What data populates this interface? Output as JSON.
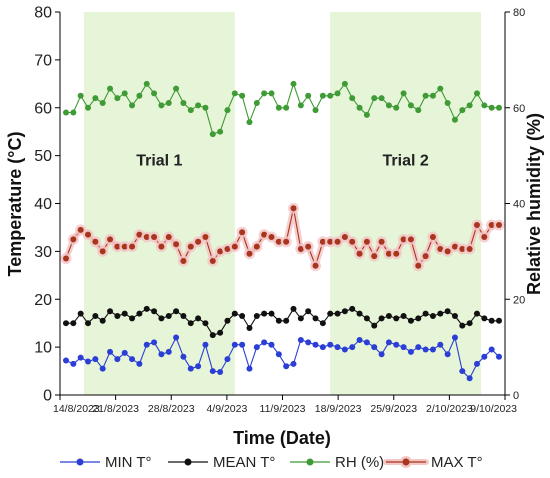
{
  "chart_data": {
    "type": "line",
    "xlabel": "Time (Date)",
    "ylabel": "Temperature (°C)",
    "y2label": "Relative humidity (%)",
    "ylim": [
      0,
      80
    ],
    "y2lim": [
      0,
      80
    ],
    "yticks": [
      0,
      10,
      20,
      30,
      40,
      50,
      60,
      70,
      80
    ],
    "y2ticks": [
      0,
      20,
      40,
      60,
      80
    ],
    "x_start": "14/8/2023",
    "x_end": "9/10/2023",
    "xticks": [
      "14/8/2023",
      "21/8/2023",
      "28/8/2023",
      "4/9/2023",
      "11/9/2023",
      "18/9/2023",
      "25/9/2023",
      "2/10/2023",
      "9/10/2023"
    ],
    "grid": false,
    "legend_position": "bottom",
    "shaded_periods": [
      {
        "label": "Trial 1",
        "start": "17/8/2023",
        "end": "5/9/2023"
      },
      {
        "label": "Trial 2",
        "start": "17/9/2023",
        "end": "6/10/2023"
      }
    ],
    "series": [
      {
        "name": "MIN T°",
        "color": "#2b3fd6",
        "axis": "left",
        "values": [
          7.2,
          6.5,
          7.8,
          7.0,
          7.5,
          5.5,
          9.0,
          7.5,
          8.8,
          7.5,
          6.5,
          10.5,
          11.0,
          8.5,
          9.0,
          12.0,
          8.0,
          5.5,
          6.0,
          10.5,
          5.0,
          4.8,
          7.5,
          10.5,
          10.5,
          5.5,
          10.0,
          11.0,
          10.5,
          8.5,
          6.0,
          6.5,
          11.5,
          11.0,
          10.5,
          10.0,
          10.5,
          10.0,
          9.5,
          10.0,
          11.5,
          11.0,
          10.0,
          8.5,
          11.0,
          10.5,
          10.0,
          9.0,
          10.0,
          9.5,
          9.5,
          10.5,
          8.5,
          12.0,
          5.0,
          3.5,
          6.5,
          8.0,
          9.5,
          8.0
        ]
      },
      {
        "name": "MEAN T°",
        "color": "#111111",
        "axis": "left",
        "values": [
          15.0,
          15.0,
          17.0,
          15.0,
          16.5,
          15.5,
          17.5,
          16.5,
          17.0,
          16.0,
          17.0,
          18.0,
          17.5,
          16.0,
          16.5,
          17.5,
          16.5,
          15.0,
          16.0,
          15.0,
          12.5,
          13.0,
          15.5,
          17.0,
          16.5,
          14.0,
          16.5,
          17.0,
          17.0,
          15.5,
          15.5,
          18.0,
          16.0,
          17.5,
          16.0,
          15.0,
          17.0,
          17.0,
          17.5,
          18.0,
          17.0,
          16.0,
          14.5,
          16.0,
          16.5,
          16.0,
          16.5,
          15.5,
          16.0,
          17.0,
          16.5,
          17.0,
          17.5,
          16.5,
          14.5,
          15.0,
          17.0,
          16.0,
          15.5,
          15.5
        ]
      },
      {
        "name": "RH (%)",
        "color": "#3f9b35",
        "axis": "right",
        "values": [
          59.0,
          59.0,
          62.5,
          60.0,
          62.0,
          61.0,
          64.0,
          62.0,
          63.0,
          60.5,
          62.5,
          65.0,
          63.0,
          60.5,
          61.0,
          64.0,
          61.0,
          59.5,
          60.5,
          60.0,
          54.5,
          55.0,
          59.5,
          63.0,
          62.5,
          57.0,
          61.0,
          63.0,
          63.0,
          60.0,
          60.0,
          65.0,
          60.5,
          62.5,
          59.5,
          62.5,
          62.5,
          63.0,
          65.0,
          62.0,
          60.0,
          58.5,
          62.0,
          62.0,
          60.5,
          60.0,
          63.0,
          60.5,
          59.5,
          62.5,
          62.5,
          64.0,
          61.0,
          57.5,
          59.5,
          60.5,
          63.0,
          60.5,
          60.0,
          60.0
        ]
      },
      {
        "name": "MAX T°",
        "color": "#a8351e",
        "axis": "left",
        "values": [
          28.5,
          32.5,
          34.5,
          33.5,
          32.0,
          30.0,
          32.5,
          31.0,
          31.0,
          31.0,
          33.5,
          33.0,
          33.0,
          31.0,
          33.0,
          31.5,
          28.0,
          31.0,
          32.0,
          33.0,
          28.0,
          30.0,
          30.5,
          31.0,
          34.0,
          29.5,
          31.0,
          33.5,
          33.0,
          32.0,
          32.0,
          39.0,
          30.5,
          31.0,
          27.0,
          32.0,
          32.0,
          32.0,
          33.0,
          32.0,
          29.5,
          32.0,
          29.0,
          32.0,
          29.5,
          29.5,
          32.5,
          32.5,
          27.0,
          29.0,
          33.0,
          30.5,
          30.0,
          31.0,
          30.5,
          30.5,
          35.5,
          33.0,
          35.5,
          35.5
        ]
      }
    ]
  },
  "legend": {
    "items": [
      {
        "name": "MIN T°",
        "color": "#2b3fd6"
      },
      {
        "name": "MEAN T°",
        "color": "#111111"
      },
      {
        "name": "RH (%)",
        "color": "#3f9b35"
      },
      {
        "name": "MAX T°",
        "color": "#a8351e"
      }
    ]
  },
  "colors": {
    "band_fill": "#e6f4d8",
    "max_glow": "#f3c6c6"
  }
}
